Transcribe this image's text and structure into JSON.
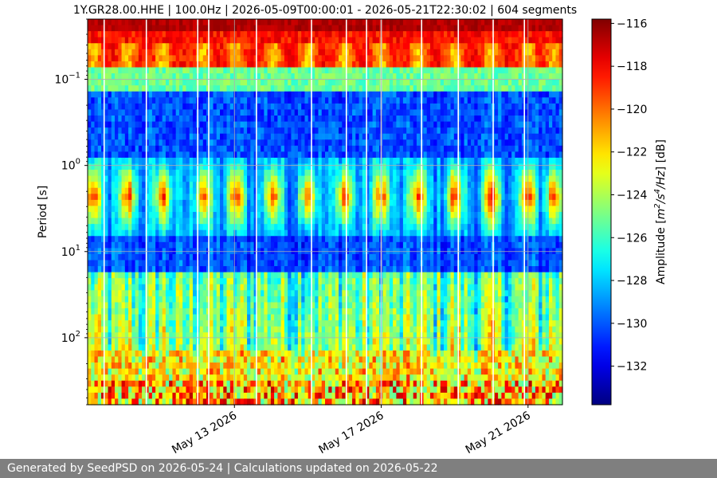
{
  "chart_data": {
    "type": "heatmap",
    "title": "1Y.GR28.00.HHE | 100.0Hz | 2026-05-09T00:00:01 - 2026-05-21T22:30:02 | 604 segments",
    "ylabel": "Period [s]",
    "colorbar_label": "Amplitude [m²/s⁴/Hz] [dB]",
    "colorbar_label_parts": {
      "prefix": "Amplitude [",
      "base1": "m",
      "exp1": "2",
      "mid": "/s",
      "exp2": "4",
      "suffix_italic": "/Hz",
      "suffix": "] [dB]"
    },
    "x": {
      "type": "date",
      "range": [
        "2026-05-09T00:00:01",
        "2026-05-21T22:30:02"
      ],
      "ticks": [
        "2026-05-13",
        "2026-05-17",
        "2026-05-21"
      ],
      "tick_labels": [
        "May 13 2026",
        "May 17 2026",
        "May 21 2026"
      ]
    },
    "y": {
      "scale": "log",
      "inverted": true,
      "range_seconds": [
        0.02,
        600
      ],
      "ticks": [
        0.1,
        1,
        10,
        100
      ],
      "tick_labels": [
        {
          "base": "10",
          "exp": "−1"
        },
        {
          "base": "10",
          "exp": "0"
        },
        {
          "base": "10",
          "exp": "1"
        },
        {
          "base": "10",
          "exp": "2"
        }
      ]
    },
    "colorbar": {
      "colormap": "jet",
      "range_db": [
        -133.8,
        -115.8
      ],
      "ticks": [
        -116,
        -118,
        -120,
        -122,
        -124,
        -126,
        -128,
        -130,
        -132
      ],
      "tick_labels": [
        "−116",
        "−118",
        "−120",
        "−122",
        "−124",
        "−126",
        "−128",
        "−130",
        "−132"
      ]
    },
    "grid": true,
    "segments": 604,
    "day_peaks": [
      0.15,
      1.1,
      2.05,
      3.15,
      4.05,
      5.05,
      6.0,
      7.0,
      8.0,
      9.0,
      10.0,
      11.0,
      12.0,
      12.7
    ],
    "data_gaps": [
      0.45,
      1.6,
      3.0,
      3.3,
      4.6,
      6.1,
      7.05,
      7.6,
      8.0,
      9.1,
      10.1,
      11.05,
      11.9
    ]
  },
  "footer": {
    "text": "Generated by SeedPSD on 2026-05-24 | Calculations updated on 2026-05-22"
  }
}
